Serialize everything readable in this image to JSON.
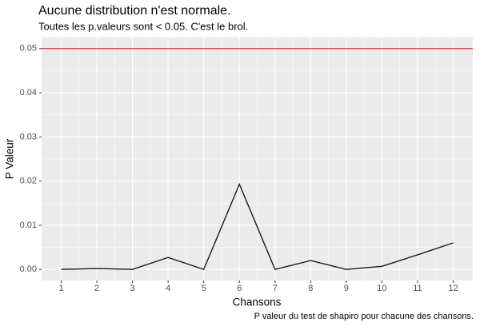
{
  "chart_data": {
    "type": "line",
    "title": "Aucune distribution n'est normale.",
    "subtitle": "Toutes les p.valeurs sont < 0.05. C'est le brol.",
    "x_label": "Chansons",
    "y_label": "P Valeur",
    "caption": "P valeur du test de shapiro pour chacune des chansons.",
    "x": [
      1,
      2,
      3,
      4,
      5,
      6,
      7,
      8,
      9,
      10,
      11,
      12
    ],
    "series": [
      {
        "color": "#1a1a1a",
        "values": [
          0.0,
          0.0002,
          0.0,
          0.0027,
          0.0,
          0.0193,
          0.0,
          0.002,
          0.0,
          0.0007,
          0.0033,
          0.006
        ]
      }
    ],
    "hline": {
      "value": 0.05,
      "color": "#ff0000"
    },
    "xlim": [
      0.45,
      12.55
    ],
    "xticks": [
      1,
      2,
      3,
      4,
      5,
      6,
      7,
      8,
      9,
      10,
      11,
      12
    ],
    "ylim": [
      -0.0025,
      0.0525
    ],
    "yticks": [
      {
        "value": 0,
        "label": "0.00"
      },
      {
        "value": 0.01,
        "label": "0.01"
      },
      {
        "value": 0.02,
        "label": "0.02"
      },
      {
        "value": 0.03,
        "label": "0.03"
      },
      {
        "value": 0.04,
        "label": "0.04"
      },
      {
        "value": 0.05,
        "label": "0.05"
      }
    ],
    "grid": true
  }
}
